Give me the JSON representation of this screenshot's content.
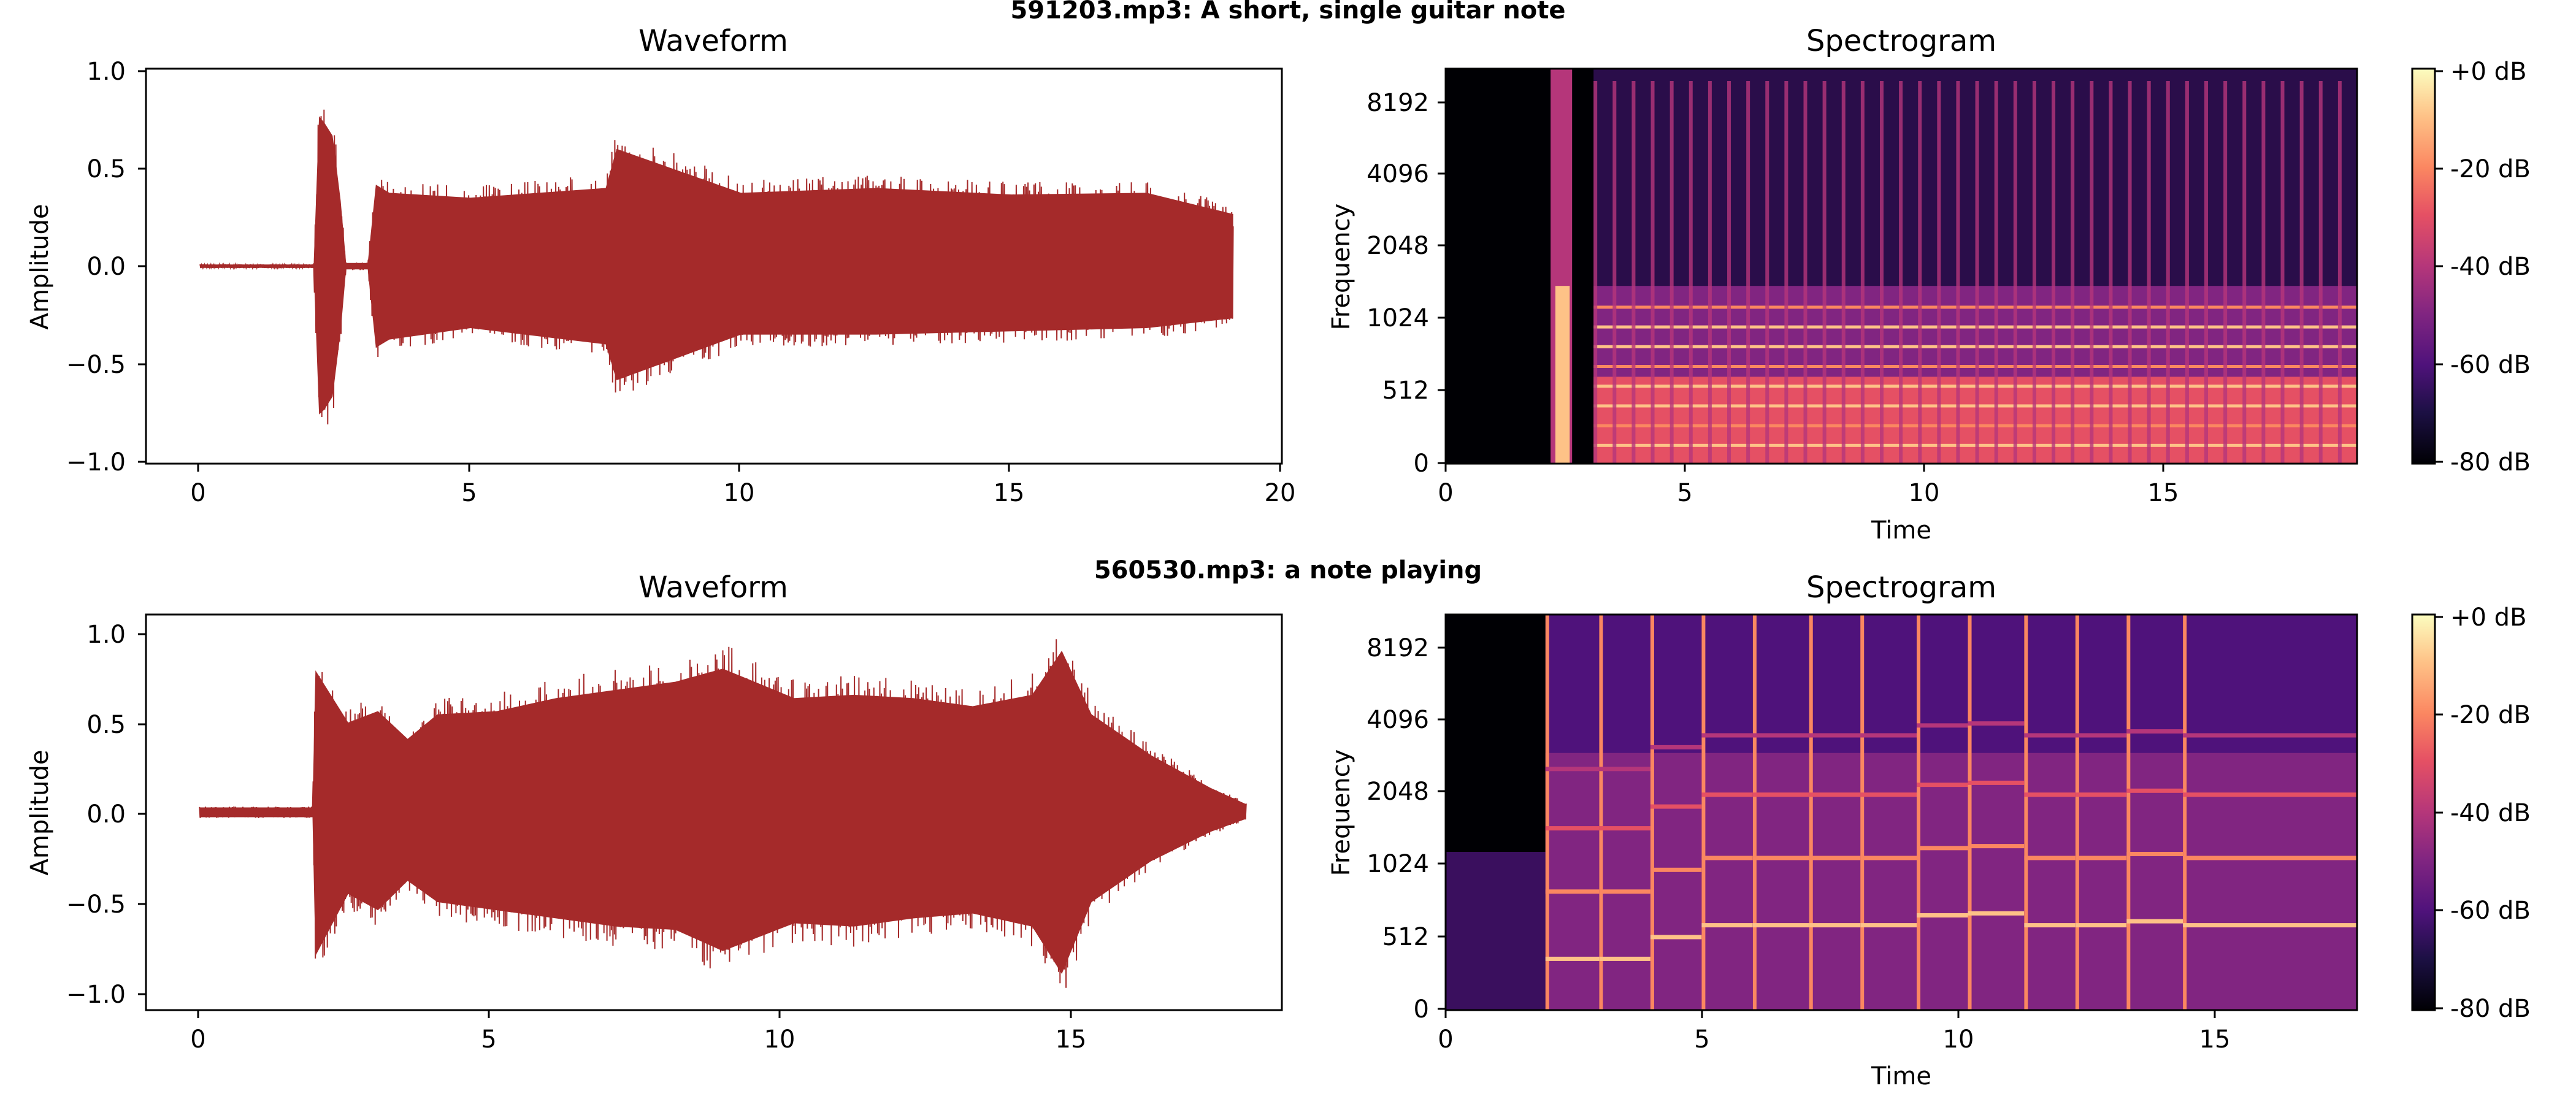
{
  "figure": {
    "colors": {
      "waveform": "#a52a2a",
      "axes": "#000000",
      "background": "#ffffff"
    },
    "colormap": "magma",
    "colorbar_ticks": [
      "+0 dB",
      "-20 dB",
      "-40 dB",
      "-60 dB",
      "-80 dB"
    ]
  },
  "panels": [
    {
      "title": "591203.mp3: A short, single guitar note",
      "waveform": {
        "title": "Waveform",
        "ylabel": "Amplitude",
        "xticks": [
          "0",
          "5",
          "10",
          "15",
          "20"
        ],
        "yticks": [
          "1.0",
          "0.5",
          "0.0",
          "−0.5",
          "−1.0"
        ]
      },
      "spectrogram": {
        "title": "Spectrogram",
        "xlabel": "Time",
        "ylabel": "Frequency",
        "xticks": [
          "0",
          "5",
          "10",
          "15"
        ],
        "yticks": [
          "8192",
          "4096",
          "2048",
          "1024",
          "512",
          "0"
        ]
      }
    },
    {
      "title": "560530.mp3: a note playing",
      "waveform": {
        "title": "Waveform",
        "ylabel": "Amplitude",
        "xticks": [
          "0",
          "5",
          "10",
          "15"
        ],
        "yticks": [
          "1.0",
          "0.5",
          "0.0",
          "−0.5",
          "−1.0"
        ]
      },
      "spectrogram": {
        "title": "Spectrogram",
        "xlabel": "Time",
        "ylabel": "Frequency",
        "xticks": [
          "0",
          "5",
          "10",
          "15"
        ],
        "yticks": [
          "8192",
          "4096",
          "2048",
          "1024",
          "512",
          "0"
        ]
      }
    }
  ],
  "chart_data": [
    {
      "type": "line",
      "title": "Waveform",
      "xlabel": "",
      "ylabel": "Amplitude",
      "xlim": [
        -1,
        20
      ],
      "ylim": [
        -1.03,
        1.03
      ],
      "envelope": {
        "t": [
          0,
          2.1,
          2.2,
          2.3,
          2.45,
          2.6,
          2.7,
          3.1,
          3.25,
          3.5,
          5,
          7.5,
          7.7,
          10,
          12.5,
          15,
          17.5,
          19.1
        ],
        "upper": [
          0.01,
          0.01,
          0.92,
          0.88,
          0.8,
          0.4,
          0.02,
          0.02,
          0.5,
          0.45,
          0.42,
          0.48,
          0.72,
          0.45,
          0.48,
          0.44,
          0.45,
          0.32
        ],
        "lower": [
          -0.01,
          -0.01,
          -0.91,
          -0.88,
          -0.8,
          -0.4,
          -0.02,
          -0.02,
          -0.5,
          -0.45,
          -0.38,
          -0.48,
          -0.7,
          -0.42,
          -0.42,
          -0.4,
          -0.38,
          -0.32
        ]
      }
    },
    {
      "type": "heatmap",
      "title": "Spectrogram",
      "xlabel": "Time",
      "ylabel": "Frequency",
      "xlim": [
        0,
        19.1
      ],
      "colorbar": {
        "min": -80,
        "max": 0,
        "unit": "dB"
      },
      "onsets": [
        2.2,
        3.1,
        3.5,
        3.9,
        4.3,
        4.7,
        5.1,
        5.5,
        5.9,
        6.3,
        6.7,
        7.1,
        7.5,
        7.9,
        8.3,
        8.7,
        9.1,
        9.5,
        9.9,
        10.3,
        10.7,
        11.1,
        11.5,
        11.9,
        12.3,
        12.7,
        13.1,
        13.5,
        13.9,
        14.3,
        14.7,
        15.1,
        15.5,
        15.9,
        16.3,
        16.7,
        17.1,
        17.5,
        17.9,
        18.3,
        18.7
      ],
      "silent_ranges": [
        [
          0,
          2.2
        ],
        [
          2.65,
          3.1
        ]
      ]
    },
    {
      "type": "line",
      "title": "Waveform",
      "xlabel": "",
      "ylabel": "Amplitude",
      "xlim": [
        -0.9,
        18.2
      ],
      "ylim": [
        -1.03,
        1.03
      ],
      "envelope": {
        "t": [
          0,
          1.9,
          1.95,
          2.5,
          3.0,
          3.5,
          4.0,
          5.0,
          6.0,
          7.0,
          8.0,
          8.8,
          10.0,
          11.0,
          12.0,
          13.0,
          14.0,
          14.5,
          15.0,
          16.0,
          17.0,
          17.6
        ],
        "upper": [
          0.03,
          0.03,
          0.87,
          0.55,
          0.62,
          0.45,
          0.6,
          0.62,
          0.7,
          0.75,
          0.8,
          0.88,
          0.7,
          0.72,
          0.7,
          0.65,
          0.72,
          0.99,
          0.6,
          0.35,
          0.15,
          0.05
        ],
        "lower": [
          -0.03,
          -0.03,
          -0.88,
          -0.5,
          -0.6,
          -0.42,
          -0.55,
          -0.6,
          -0.65,
          -0.7,
          -0.72,
          -0.85,
          -0.68,
          -0.7,
          -0.65,
          -0.62,
          -0.7,
          -0.99,
          -0.55,
          -0.3,
          -0.12,
          -0.04
        ]
      }
    },
    {
      "type": "heatmap",
      "title": "Spectrogram",
      "xlabel": "Time",
      "ylabel": "Frequency",
      "xlim": [
        0,
        17.8
      ],
      "colorbar": {
        "min": -80,
        "max": 0,
        "unit": "dB"
      },
      "onsets": [
        1.95,
        3.0,
        4.0,
        5.0,
        6.0,
        7.1,
        8.1,
        9.2,
        10.2,
        11.3,
        12.3,
        13.3,
        14.4
      ],
      "notes_hz": [
        330,
        330,
        440,
        500,
        500,
        500,
        500,
        550,
        560,
        500,
        500,
        520,
        500
      ]
    }
  ]
}
